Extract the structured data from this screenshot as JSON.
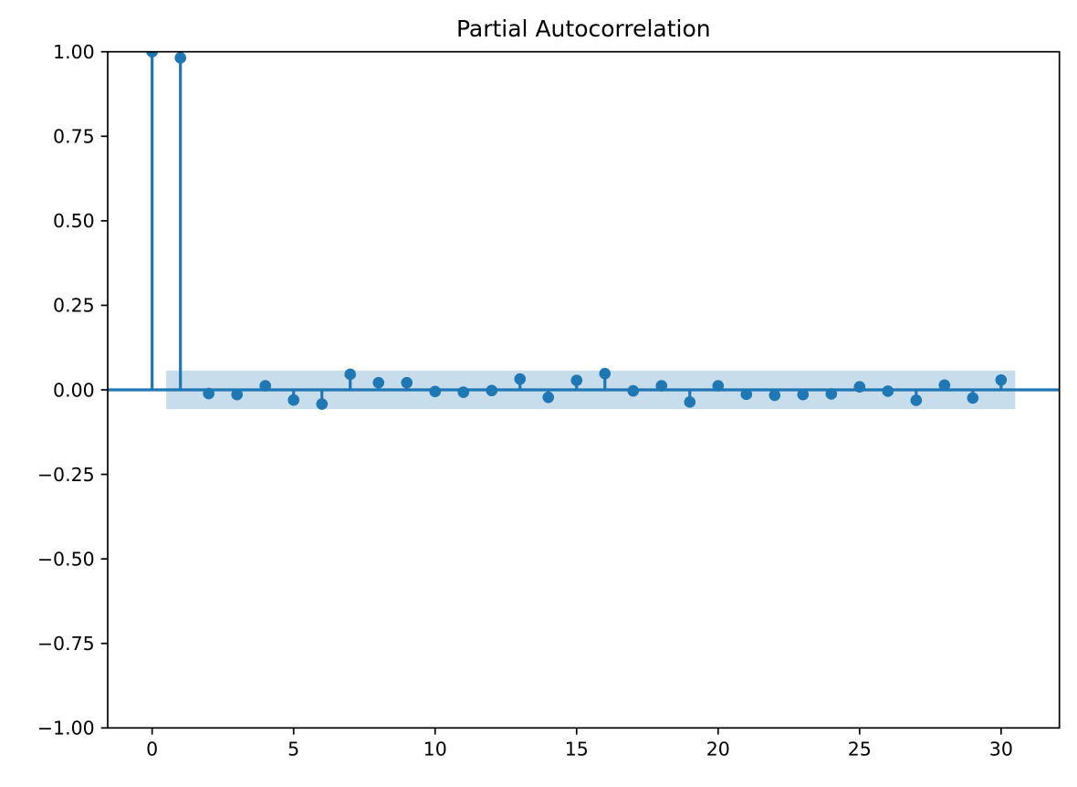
{
  "chart_data": {
    "type": "stem",
    "title": "Partial Autocorrelation",
    "x": [
      0,
      1,
      2,
      3,
      4,
      5,
      6,
      7,
      8,
      9,
      10,
      11,
      12,
      13,
      14,
      15,
      16,
      17,
      18,
      19,
      20,
      21,
      22,
      23,
      24,
      25,
      26,
      27,
      28,
      29,
      30
    ],
    "values": [
      1.0,
      0.982,
      -0.011,
      -0.014,
      0.012,
      -0.03,
      -0.042,
      0.046,
      0.021,
      0.021,
      -0.005,
      -0.007,
      -0.002,
      0.032,
      -0.022,
      0.028,
      0.048,
      -0.003,
      0.012,
      -0.036,
      0.012,
      -0.013,
      -0.016,
      -0.014,
      -0.012,
      0.009,
      -0.004,
      -0.031,
      0.014,
      -0.024,
      0.029
    ],
    "conf_band": {
      "lo": -0.057,
      "hi": 0.057,
      "x_start": 0.5,
      "x_end": 30.5
    },
    "xlim": [
      -1.57,
      32.06
    ],
    "ylim": [
      -1.0,
      1.0
    ],
    "xticks": {
      "values": [
        0,
        5,
        10,
        15,
        20,
        25,
        30
      ],
      "labels": [
        "0",
        "5",
        "10",
        "15",
        "20",
        "25",
        "30"
      ]
    },
    "yticks": {
      "values": [
        1.0,
        0.75,
        0.5,
        0.25,
        0.0,
        -0.25,
        -0.5,
        -0.75,
        -1.0
      ],
      "labels": [
        "1.00",
        "0.75",
        "0.50",
        "0.25",
        "0.00",
        "−0.25",
        "−0.50",
        "−0.75",
        "−1.00"
      ]
    },
    "xlabel": "",
    "ylabel": "",
    "grid": false,
    "legend": null,
    "colors": {
      "stem": "#1f77b4",
      "marker": "#1f77b4",
      "zero_line": "#1f77b4",
      "band_fill": "#1f77b4",
      "band_opacity": 0.25,
      "spine": "#000000",
      "background": "#ffffff"
    }
  }
}
